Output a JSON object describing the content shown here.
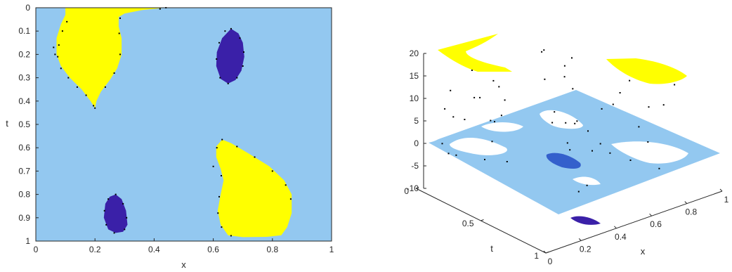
{
  "colors": {
    "background_region": "#93c8f0",
    "high_region": "#ffff00",
    "low_region": "#3a20a8",
    "low_region_3d": "#3460cc",
    "points": "#000000",
    "axis": "#262626"
  },
  "chart_data": [
    {
      "type": "heatmap",
      "title": "",
      "xlabel": "x",
      "ylabel": "t",
      "xlim": [
        0,
        1
      ],
      "ylim": [
        0,
        1
      ],
      "y_reversed": true,
      "xticks": [
        0,
        0.2,
        0.4,
        0.6,
        0.8,
        1
      ],
      "xtick_labels": [
        "0",
        "0.2",
        "0.4",
        "0.6",
        "0.8",
        "1"
      ],
      "yticks": [
        0,
        0.1,
        0.2,
        0.3,
        0.4,
        0.5,
        0.6,
        0.7,
        0.8,
        0.9,
        1
      ],
      "ytick_labels": [
        "0",
        "0.1",
        "0.2",
        "0.3",
        "0.4",
        "0.5",
        "0.6",
        "0.7",
        "0.8",
        "0.9",
        "1"
      ],
      "regions": [
        {
          "level": "high",
          "outline": [
            [
              0.1,
              0
            ],
            [
              0.44,
              0
            ],
            [
              0.36,
              0.01
            ],
            [
              0.3,
              0.025
            ],
            [
              0.28,
              0.04
            ],
            [
              0.28,
              0.08
            ],
            [
              0.29,
              0.13
            ],
            [
              0.29,
              0.2
            ],
            [
              0.275,
              0.26
            ],
            [
              0.25,
              0.31
            ],
            [
              0.22,
              0.36
            ],
            [
              0.205,
              0.4
            ],
            [
              0.2,
              0.43
            ],
            [
              0.185,
              0.4
            ],
            [
              0.155,
              0.35
            ],
            [
              0.115,
              0.3
            ],
            [
              0.085,
              0.25
            ],
            [
              0.07,
              0.2
            ],
            [
              0.07,
              0.13
            ],
            [
              0.085,
              0.07
            ],
            [
              0.1,
              0.03
            ]
          ]
        },
        {
          "level": "low",
          "outline": [
            [
              0.66,
              0.09
            ],
            [
              0.685,
              0.11
            ],
            [
              0.7,
              0.15
            ],
            [
              0.705,
              0.21
            ],
            [
              0.695,
              0.27
            ],
            [
              0.675,
              0.31
            ],
            [
              0.65,
              0.325
            ],
            [
              0.625,
              0.305
            ],
            [
              0.61,
              0.25
            ],
            [
              0.612,
              0.19
            ],
            [
              0.63,
              0.13
            ]
          ]
        },
        {
          "level": "high",
          "outline": [
            [
              0.63,
              0.565
            ],
            [
              0.66,
              0.58
            ],
            [
              0.72,
              0.625
            ],
            [
              0.79,
              0.68
            ],
            [
              0.84,
              0.74
            ],
            [
              0.865,
              0.8
            ],
            [
              0.865,
              0.88
            ],
            [
              0.85,
              0.94
            ],
            [
              0.83,
              0.975
            ],
            [
              0.78,
              0.982
            ],
            [
              0.7,
              0.983
            ],
            [
              0.65,
              0.975
            ],
            [
              0.625,
              0.93
            ],
            [
              0.615,
              0.87
            ],
            [
              0.625,
              0.8
            ],
            [
              0.635,
              0.74
            ],
            [
              0.625,
              0.69
            ],
            [
              0.61,
              0.64
            ],
            [
              0.61,
              0.595
            ]
          ]
        },
        {
          "level": "low",
          "outline": [
            [
              0.27,
              0.8
            ],
            [
              0.29,
              0.82
            ],
            [
              0.305,
              0.87
            ],
            [
              0.31,
              0.93
            ],
            [
              0.295,
              0.96
            ],
            [
              0.27,
              0.965
            ],
            [
              0.245,
              0.95
            ],
            [
              0.23,
              0.9
            ],
            [
              0.235,
              0.84
            ],
            [
              0.25,
              0.81
            ]
          ]
        }
      ],
      "points": [
        [
          0.105,
          0.06
        ],
        [
          0.09,
          0.1
        ],
        [
          0.078,
          0.16
        ],
        [
          0.074,
          0.21
        ],
        [
          0.085,
          0.26
        ],
        [
          0.11,
          0.3
        ],
        [
          0.14,
          0.34
        ],
        [
          0.17,
          0.375
        ],
        [
          0.195,
          0.42
        ],
        [
          0.2,
          0.43
        ],
        [
          0.235,
          0.34
        ],
        [
          0.265,
          0.28
        ],
        [
          0.285,
          0.2
        ],
        [
          0.282,
          0.11
        ],
        [
          0.285,
          0.045
        ],
        [
          0.42,
          0.005
        ],
        [
          0.44,
          0.0
        ],
        [
          0.66,
          0.09
        ],
        [
          0.69,
          0.13
        ],
        [
          0.703,
          0.19
        ],
        [
          0.7,
          0.25
        ],
        [
          0.68,
          0.3
        ],
        [
          0.65,
          0.325
        ],
        [
          0.623,
          0.3
        ],
        [
          0.611,
          0.22
        ],
        [
          0.62,
          0.15
        ],
        [
          0.64,
          0.1
        ],
        [
          0.63,
          0.565
        ],
        [
          0.68,
          0.595
        ],
        [
          0.74,
          0.64
        ],
        [
          0.8,
          0.7
        ],
        [
          0.845,
          0.76
        ],
        [
          0.862,
          0.82
        ],
        [
          0.6,
          0.68
        ],
        [
          0.612,
          0.6
        ],
        [
          0.627,
          0.72
        ],
        [
          0.62,
          0.81
        ],
        [
          0.616,
          0.88
        ],
        [
          0.628,
          0.94
        ],
        [
          0.66,
          0.977
        ],
        [
          0.27,
          0.8
        ],
        [
          0.295,
          0.84
        ],
        [
          0.307,
          0.9
        ],
        [
          0.3,
          0.95
        ],
        [
          0.265,
          0.965
        ],
        [
          0.238,
          0.93
        ],
        [
          0.232,
          0.87
        ],
        [
          0.245,
          0.82
        ],
        [
          0.06,
          0.17
        ],
        [
          0.065,
          0.2
        ]
      ]
    },
    {
      "type": "scatter",
      "title": "",
      "xlabel": "x",
      "ylabel": "t",
      "zlim": [
        -10,
        20
      ],
      "xticks": [
        0,
        0.2,
        0.4,
        0.6,
        0.8,
        1
      ],
      "xtick_labels": [
        "0",
        "0.2",
        "0.4",
        "0.6",
        "0.8",
        "1"
      ],
      "yticks": [
        0,
        0.5,
        1
      ],
      "ytick_labels": [
        "0",
        "0.5",
        "1"
      ],
      "zticks": [
        -10,
        -5,
        0,
        5,
        10,
        15,
        20
      ],
      "ztick_labels": [
        "-10",
        "-5",
        "0",
        "5",
        "10",
        "15",
        "20"
      ],
      "surface_levels": {
        "mid": 0,
        "high": 17,
        "low": -5
      }
    }
  ]
}
